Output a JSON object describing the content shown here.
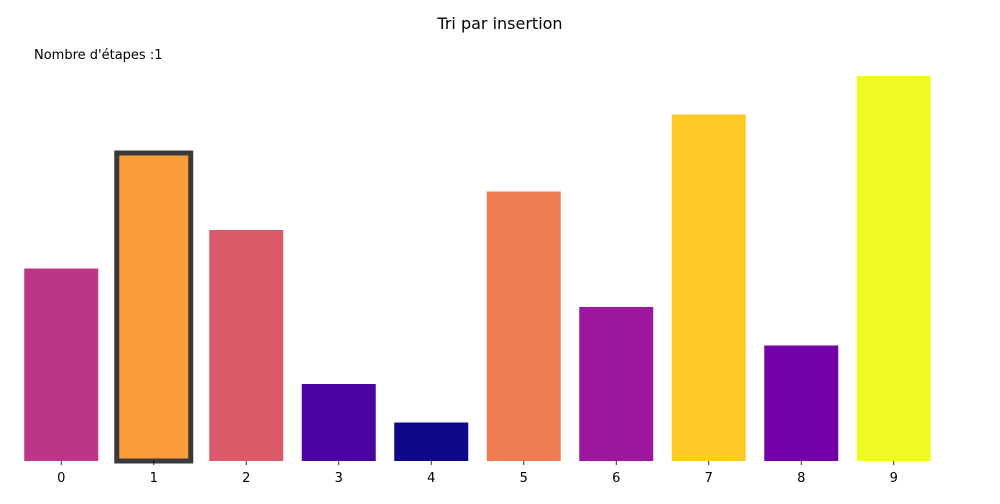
{
  "chart_data": {
    "type": "bar",
    "title": "Tri par insertion",
    "annotation": "Nombre d'étapes :1",
    "categories": [
      "0",
      "1",
      "2",
      "3",
      "4",
      "5",
      "6",
      "7",
      "8",
      "9"
    ],
    "values": [
      5,
      8,
      6,
      2,
      1,
      7,
      4,
      9,
      3,
      10
    ],
    "colors": [
      "#bc3587",
      "#fa9e3b",
      "#da5a6a",
      "#4903a0",
      "#0d0887",
      "#ee7b51",
      "#9c179e",
      "#fdca26",
      "#7201a8",
      "#f0f921"
    ],
    "highlight_index": 1,
    "highlight_color": "#3a3a3a",
    "ylim": [
      0,
      10
    ],
    "xlabel": "",
    "ylabel": "",
    "grid": false
  }
}
